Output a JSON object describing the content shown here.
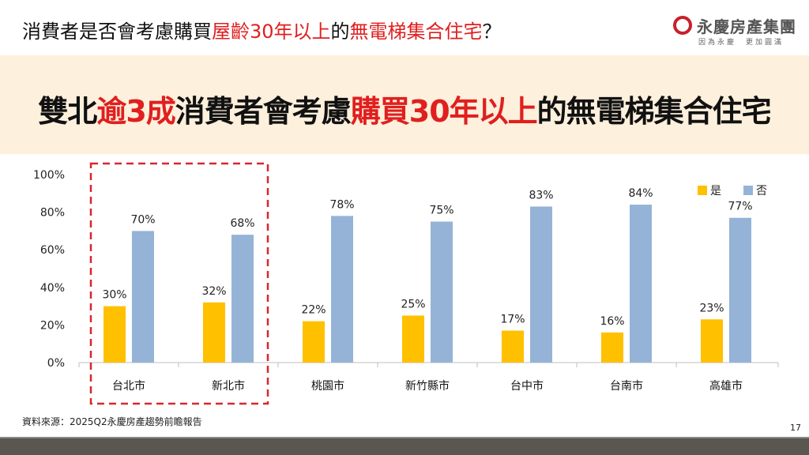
{
  "title": {
    "p1": "消費者是否會考慮購買",
    "p2": "屋齡30年以上",
    "p3": "的",
    "p4": "無電梯集合住宅",
    "p5": "？"
  },
  "logo": {
    "name": "永慶房產集團",
    "tagline": "因為永慶　更加圓滿"
  },
  "headline": {
    "p1": "雙北",
    "p2": "逾3成",
    "p3": "消費者會考慮",
    "p4": "購買30年以上",
    "p5": "的無電梯集合住宅"
  },
  "colors": {
    "yes": "#ffc000",
    "no": "#95b3d7",
    "accent": "#e01f1f",
    "band": "#fdf0dc",
    "highlight_box": "#d9272e"
  },
  "chart_data": {
    "type": "bar",
    "categories": [
      "台北市",
      "新北市",
      "桃園市",
      "新竹縣市",
      "台中市",
      "台南市",
      "高雄市"
    ],
    "series": [
      {
        "name": "是",
        "values": [
          30,
          32,
          22,
          25,
          17,
          16,
          23
        ]
      },
      {
        "name": "否",
        "values": [
          70,
          68,
          78,
          75,
          83,
          84,
          77
        ]
      }
    ],
    "ylim": [
      0,
      100
    ],
    "yticks": [
      "0%",
      "20%",
      "40%",
      "60%",
      "80%",
      "100%"
    ],
    "legend": "top-right",
    "grid": false,
    "highlighted_categories": [
      "台北市",
      "新北市"
    ]
  },
  "source": "資料來源：2025Q2永慶房產趨勢前瞻報告",
  "page_number": "17"
}
